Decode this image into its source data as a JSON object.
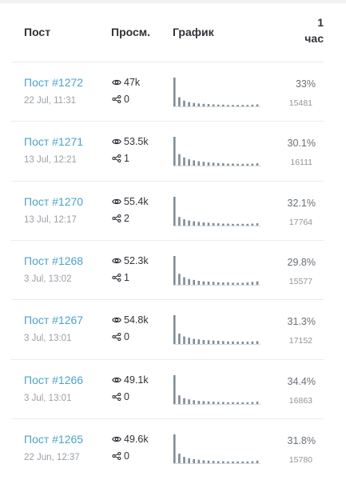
{
  "header": {
    "post": "Пост",
    "views": "Просм.",
    "graph": "График",
    "hour_num": "1",
    "hour_unit": "час"
  },
  "icons": {
    "views": "eye-icon",
    "shares": "share-icon"
  },
  "colors": {
    "link": "#4aa3c9",
    "bar": "#7f8c97",
    "separator": "#e9ebee"
  },
  "rows": [
    {
      "title": "Пост #1272",
      "date": "22 Jul, 11:31",
      "views": "47k",
      "shares": "0",
      "pct": "33%",
      "count": "15481",
      "bars": [
        1.0,
        0.32,
        0.2,
        0.15,
        0.12,
        0.1,
        0.09,
        0.08,
        0.07,
        0.06,
        0.06,
        0.05,
        0.05,
        0.05,
        0.05,
        0.05,
        0.06,
        0.07
      ]
    },
    {
      "title": "Пост #1271",
      "date": "13 Jul, 12:21",
      "views": "53.5k",
      "shares": "1",
      "pct": "30.1%",
      "count": "16111",
      "bars": [
        1.0,
        0.4,
        0.28,
        0.22,
        0.18,
        0.15,
        0.13,
        0.11,
        0.1,
        0.09,
        0.08,
        0.07,
        0.07,
        0.06,
        0.06,
        0.06,
        0.07,
        0.08
      ]
    },
    {
      "title": "Пост #1270",
      "date": "13 Jul, 12:17",
      "views": "55.4k",
      "shares": "2",
      "pct": "32.1%",
      "count": "17764",
      "bars": [
        1.0,
        0.3,
        0.22,
        0.18,
        0.15,
        0.13,
        0.11,
        0.1,
        0.09,
        0.08,
        0.07,
        0.07,
        0.06,
        0.06,
        0.06,
        0.06,
        0.07,
        0.08
      ]
    },
    {
      "title": "Пост #1268",
      "date": "3 Jul, 13:02",
      "views": "52.3k",
      "shares": "1",
      "pct": "29.8%",
      "count": "15577",
      "bars": [
        1.0,
        0.38,
        0.26,
        0.2,
        0.17,
        0.14,
        0.12,
        0.11,
        0.1,
        0.09,
        0.08,
        0.08,
        0.07,
        0.07,
        0.07,
        0.08,
        0.1,
        0.12
      ]
    },
    {
      "title": "Пост #1267",
      "date": "3 Jul, 13:01",
      "views": "54.8k",
      "shares": "0",
      "pct": "31.3%",
      "count": "17152",
      "bars": [
        1.0,
        0.36,
        0.26,
        0.22,
        0.18,
        0.16,
        0.14,
        0.13,
        0.12,
        0.11,
        0.1,
        0.09,
        0.09,
        0.08,
        0.08,
        0.08,
        0.09,
        0.1
      ]
    },
    {
      "title": "Пост #1266",
      "date": "3 Jul, 13:01",
      "views": "49.1k",
      "shares": "0",
      "pct": "34.4%",
      "count": "16863",
      "bars": [
        1.0,
        0.3,
        0.2,
        0.16,
        0.13,
        0.11,
        0.1,
        0.09,
        0.08,
        0.07,
        0.07,
        0.06,
        0.06,
        0.06,
        0.06,
        0.06,
        0.07,
        0.08
      ]
    },
    {
      "title": "Пост #1265",
      "date": "22 Jun, 12:37",
      "views": "49.6k",
      "shares": "0",
      "pct": "31.8%",
      "count": "15780",
      "bars": [
        1.0,
        0.33,
        0.22,
        0.17,
        0.14,
        0.12,
        0.1,
        0.09,
        0.08,
        0.07,
        0.07,
        0.06,
        0.06,
        0.06,
        0.06,
        0.06,
        0.07,
        0.09
      ]
    }
  ]
}
